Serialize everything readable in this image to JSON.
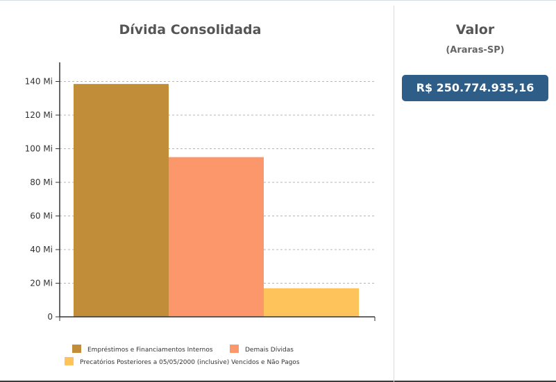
{
  "colors": {
    "emprestimos": "#c18d39",
    "demais": "#fc966b",
    "precatorios": "#fec45b",
    "badge": "#2e5d87"
  },
  "chart_data": {
    "type": "bar",
    "title": "Dívida Consolidada",
    "xlabel": "",
    "ylabel": "",
    "ylim": [
      0,
      150
    ],
    "yticks": [
      0,
      20,
      40,
      60,
      80,
      100,
      120,
      140
    ],
    "ytick_labels": [
      "0",
      "20 Mi",
      "40 Mi",
      "60 Mi",
      "80 Mi",
      "100 Mi",
      "120 Mi",
      "140 Mi"
    ],
    "grid": true,
    "legend_position": "bottom",
    "series": [
      {
        "name": "Empréstimos e Financiamentos Internos",
        "values": [
          138.5
        ],
        "color": "#c18d39"
      },
      {
        "name": "Demais Dívidas",
        "values": [
          95
        ],
        "color": "#fc966b"
      },
      {
        "name": "Precatórios Posteriores a 05/05/2000 (inclusive) Vencidos e Não Pagos",
        "values": [
          17
        ],
        "color": "#fec45b"
      }
    ]
  },
  "valor": {
    "title": "Valor",
    "subtitle": "(Araras-SP)",
    "amount": "R$  250.774.935,16"
  }
}
